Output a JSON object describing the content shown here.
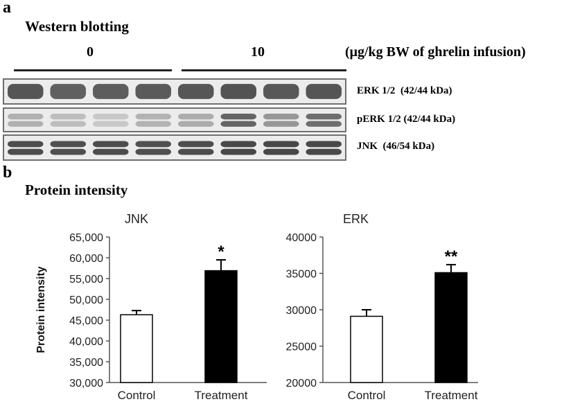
{
  "panel_a": {
    "letter": "a",
    "title": "Western blotting",
    "dose_groups": [
      "0",
      "10"
    ],
    "dose_unit": "(μg/kg BW of ghrelin infusion)",
    "lanes_per_group": 4,
    "band_labels": [
      {
        "name": "ERK 1/2",
        "size": "(42/44 kDa)"
      },
      {
        "name": "pERK 1/2",
        "size": "(42/44 kDa)"
      },
      {
        "name": "JNK",
        "size": "(46/54 kDa)"
      }
    ],
    "band_intensity": {
      "ERK 1/2": [
        0.85,
        0.78,
        0.8,
        0.82,
        0.84,
        0.86,
        0.83,
        0.85
      ],
      "pERK 1/2": [
        0.3,
        0.22,
        0.15,
        0.28,
        0.32,
        0.75,
        0.45,
        0.7
      ],
      "JNK": [
        0.9,
        0.88,
        0.9,
        0.88,
        0.9,
        0.92,
        0.93,
        0.92
      ]
    }
  },
  "panel_b": {
    "letter": "b",
    "title": "Protein intensity"
  },
  "chart_data": [
    {
      "type": "bar",
      "title": "JNK",
      "ylabel": "Protein intensity",
      "xlabel": "",
      "categories": [
        "Control",
        "Treatment"
      ],
      "values": [
        46300,
        56900
      ],
      "errors": [
        1000,
        2600
      ],
      "significance": [
        "",
        "*"
      ],
      "ylim": [
        30000,
        65000
      ],
      "yticks": [
        30000,
        35000,
        40000,
        45000,
        50000,
        55000,
        60000,
        65000
      ],
      "ytick_labels": [
        "30,000",
        "35,000",
        "40,000",
        "45,000",
        "50,000",
        "55,000",
        "60,000",
        "65,000"
      ],
      "bar_colors": [
        "#ffffff",
        "#000000"
      ]
    },
    {
      "type": "bar",
      "title": "ERK",
      "ylabel": "",
      "xlabel": "",
      "categories": [
        "Control",
        "Treatment"
      ],
      "values": [
        29100,
        35100
      ],
      "errors": [
        900,
        1100
      ],
      "significance": [
        "",
        "**"
      ],
      "ylim": [
        20000,
        40000
      ],
      "yticks": [
        20000,
        25000,
        30000,
        35000,
        40000
      ],
      "ytick_labels": [
        "20000",
        "25000",
        "30000",
        "35000",
        "40000"
      ],
      "bar_colors": [
        "#ffffff",
        "#000000"
      ]
    }
  ]
}
